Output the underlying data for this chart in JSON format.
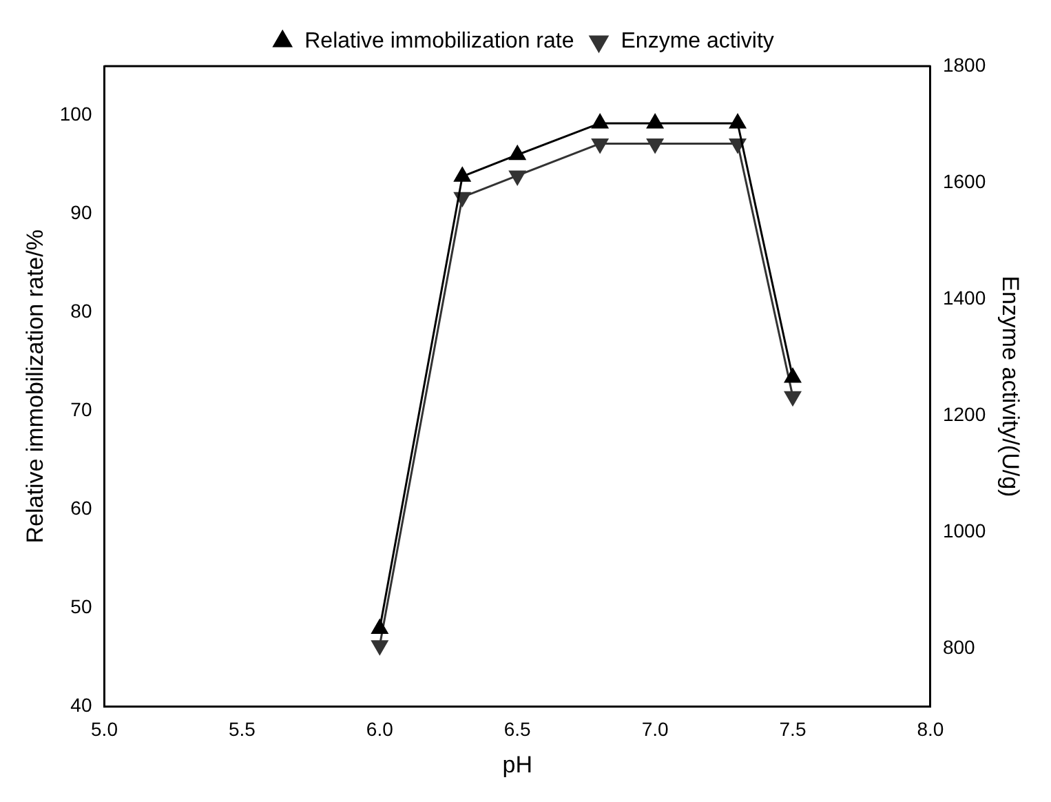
{
  "chart_data": {
    "type": "line",
    "xlabel": "pH",
    "ylabel": "Relative immobilization rate/%",
    "y2label": "Enzyme activity/(U/g)",
    "x": [
      6.0,
      6.3,
      6.5,
      6.8,
      7.0,
      7.3,
      7.5
    ],
    "series": [
      {
        "name": "Relative immobilization rate",
        "color": "#000000",
        "values": [
          47.9,
          93.8,
          96.0,
          99.2,
          99.2,
          99.2,
          73.4
        ]
      },
      {
        "name": "Enzyme activity",
        "color": "#333333",
        "axis": "y2",
        "values": [
          805,
          1575,
          1612,
          1667,
          1667,
          1667,
          1233
        ]
      }
    ],
    "xlim": [
      5.0,
      8.0
    ],
    "xticks": [
      {
        "value": 5,
        "label": "5.0"
      },
      {
        "value": 5.5,
        "label": "5.5"
      },
      {
        "value": 6,
        "label": "6.0"
      },
      {
        "value": 6.5,
        "label": "6.5"
      },
      {
        "value": 7,
        "label": "7.0"
      },
      {
        "value": 7.5,
        "label": "7.5"
      },
      {
        "value": 8,
        "label": "8.0"
      }
    ],
    "ylim": [
      40,
      105
    ],
    "yticks": [
      40,
      50,
      60,
      70,
      80,
      90,
      100
    ],
    "y2lim": [
      700,
      1800
    ],
    "y2ticks": [
      800,
      1000,
      1200,
      1400,
      1600,
      1800
    ],
    "grid": false,
    "legend": "top",
    "marker": "triangle",
    "line_style": "solid"
  }
}
